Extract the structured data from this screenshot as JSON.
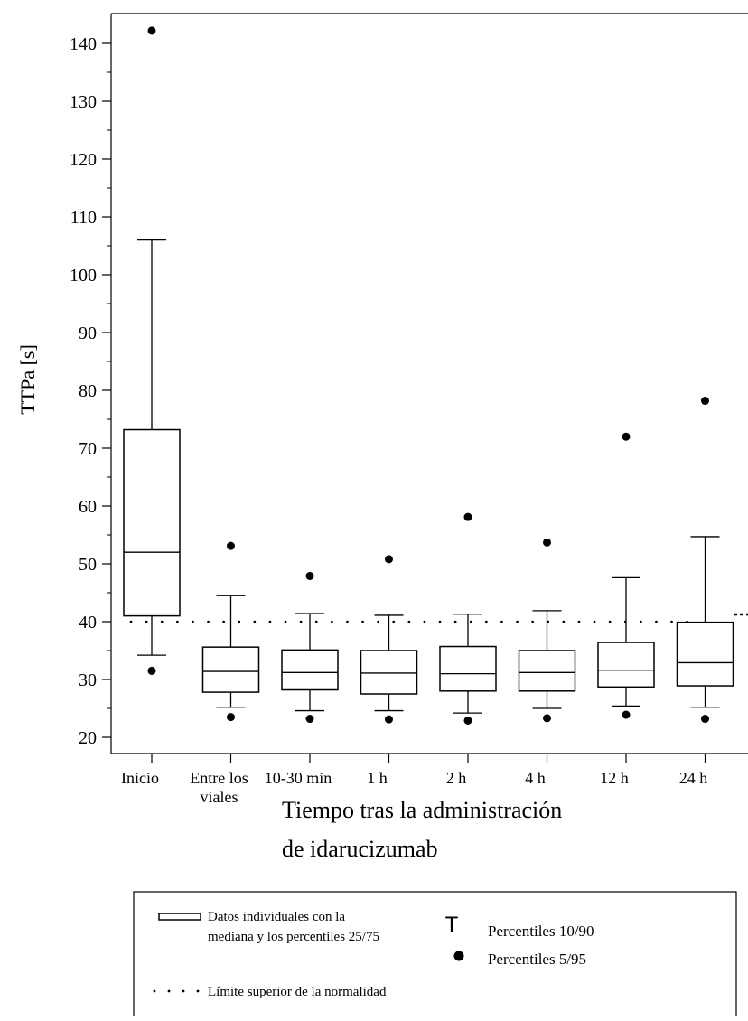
{
  "chart_data": {
    "type": "box",
    "ylabel": "TTPa [s]",
    "xlabel_lines": [
      "Tiempo tras la administración",
      "de idarucizumab"
    ],
    "ylim": [
      17,
      145
    ],
    "yticks": [
      20,
      30,
      40,
      50,
      60,
      70,
      80,
      90,
      100,
      110,
      120,
      130,
      140
    ],
    "upper_normal_limit": 40,
    "categories": [
      {
        "lines": [
          "Inicio"
        ]
      },
      {
        "lines": [
          "Entre los",
          "viales"
        ]
      },
      {
        "lines": [
          "10-30 min"
        ]
      },
      {
        "lines": [
          "1 h"
        ]
      },
      {
        "lines": [
          "2 h"
        ]
      },
      {
        "lines": [
          "4 h"
        ]
      },
      {
        "lines": [
          "12 h"
        ]
      },
      {
        "lines": [
          "24 h"
        ]
      }
    ],
    "boxes": [
      {
        "p5": 31.5,
        "p10": 34.2,
        "q1": 41.0,
        "median": 52.0,
        "q3": 73.2,
        "p90": 106.0,
        "p95": 142.2
      },
      {
        "p5": 23.5,
        "p10": 25.2,
        "q1": 27.8,
        "median": 31.4,
        "q3": 35.6,
        "p90": 44.5,
        "p95": 53.1
      },
      {
        "p5": 23.2,
        "p10": 24.6,
        "q1": 28.2,
        "median": 31.2,
        "q3": 35.1,
        "p90": 41.4,
        "p95": 47.9
      },
      {
        "p5": 23.1,
        "p10": 24.6,
        "q1": 27.5,
        "median": 31.1,
        "q3": 35.0,
        "p90": 41.1,
        "p95": 50.8
      },
      {
        "p5": 22.9,
        "p10": 24.2,
        "q1": 28.0,
        "median": 31.0,
        "q3": 35.7,
        "p90": 41.3,
        "p95": 58.1
      },
      {
        "p5": 23.3,
        "p10": 25.0,
        "q1": 28.0,
        "median": 31.2,
        "q3": 35.0,
        "p90": 41.9,
        "p95": 53.7
      },
      {
        "p5": 23.9,
        "p10": 25.4,
        "q1": 28.7,
        "median": 31.6,
        "q3": 36.4,
        "p90": 47.6,
        "p95": 72.0
      },
      {
        "p5": 23.2,
        "p10": 25.2,
        "q1": 28.9,
        "median": 32.9,
        "q3": 39.9,
        "p90": 54.7,
        "p95": 78.2
      }
    ]
  },
  "legend": {
    "box_text_1": "Datos individuales con la",
    "box_text_2": "mediana y los percentiles 25/75",
    "whisker_symbol": "T",
    "whisker_text": "Percentiles 10/90",
    "dot_text": "Percentiles 5/95",
    "limit_text": "Límite superior de la normalidad"
  }
}
